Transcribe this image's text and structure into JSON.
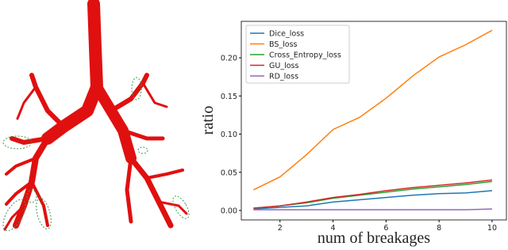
{
  "chart_data": {
    "type": "line",
    "xlabel": "num of breakages",
    "ylabel": "ratio",
    "x": [
      1,
      2,
      3,
      4,
      5,
      6,
      7,
      8,
      9,
      10
    ],
    "series": [
      {
        "name": "Dice_loss",
        "color": "#1f77b4",
        "values": [
          0.002,
          0.004,
          0.006,
          0.011,
          0.014,
          0.017,
          0.02,
          0.022,
          0.023,
          0.026
        ]
      },
      {
        "name": "BS_loss",
        "color": "#ff7f0e",
        "values": [
          0.027,
          0.044,
          0.073,
          0.106,
          0.122,
          0.147,
          0.176,
          0.201,
          0.217,
          0.236
        ]
      },
      {
        "name": "Cross_Entropy_loss",
        "color": "#2ca02c",
        "values": [
          0.003,
          0.006,
          0.01,
          0.016,
          0.02,
          0.024,
          0.028,
          0.031,
          0.034,
          0.038
        ]
      },
      {
        "name": "GU_loss",
        "color": "#d62728",
        "values": [
          0.003,
          0.006,
          0.011,
          0.017,
          0.021,
          0.026,
          0.03,
          0.033,
          0.036,
          0.04
        ]
      },
      {
        "name": "RD_loss",
        "color": "#9467bd",
        "values": [
          0.001,
          0.001,
          0.001,
          0.001,
          0.001,
          0.001,
          0.001,
          0.001,
          0.001,
          0.002
        ]
      }
    ],
    "xlim": [
      0.54,
      10.54
    ],
    "ylim": [
      -0.0124,
      0.2477
    ],
    "xticks": [
      2,
      4,
      6,
      8,
      10
    ],
    "yticks": [
      {
        "value": 0,
        "label": "0.00"
      },
      {
        "value": 0.05,
        "label": "0.05"
      },
      {
        "value": 0.1,
        "label": "0.10"
      },
      {
        "value": 0.15,
        "label": "0.15"
      },
      {
        "value": 0.2,
        "label": "0.20"
      }
    ],
    "legend": "upper left"
  }
}
